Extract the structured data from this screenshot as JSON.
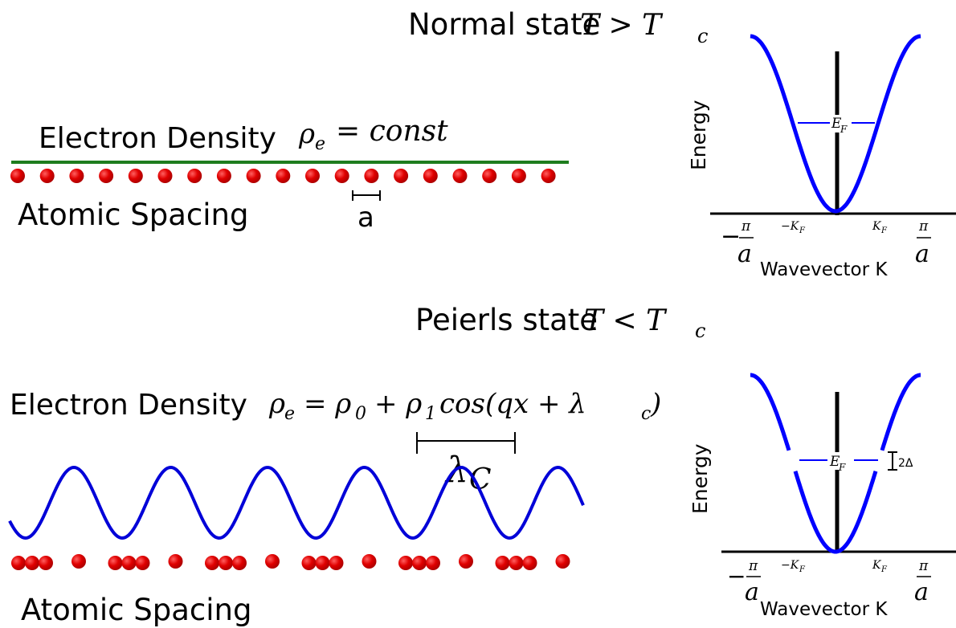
{
  "colors": {
    "electron_density_line": "#1e7d1e",
    "atom": "#e00000",
    "band": "#0000ff",
    "axis": "#000000"
  },
  "normal": {
    "state_label": "Normal state",
    "state_condition": "T > T",
    "state_sub": "c",
    "electron_density_label": "Electron Density",
    "electron_density_formula": "ρ",
    "formula_sub": "e",
    "formula_rhs": "= const",
    "atomic_spacing_label": "Atomic Spacing",
    "spacing_symbol": "a",
    "atoms_count": 19,
    "band": {
      "energy_label": "Energy",
      "fermi_label": "E",
      "fermi_sub": "F",
      "kf_neg": "−K",
      "kf_pos": "K",
      "kf_sub": "F",
      "pi_num": "π",
      "pi_den": "a",
      "minus": "−",
      "wavevector_label": "Wavevector K"
    }
  },
  "peierls": {
    "state_label": "Peierls state",
    "state_condition": "T < T",
    "state_sub": "c",
    "electron_density_label": "Electron Density",
    "formula_main": "ρ",
    "formula_sub_e": "e",
    "formula_eq": "= ρ",
    "formula_sub_0": "0",
    "formula_plus": "+ ρ",
    "formula_sub_1": "1",
    "formula_cos": "cos(qx + λ",
    "formula_sub_c": "c",
    "formula_close": ")",
    "lambda_label": "λ",
    "lambda_sub": "C",
    "atomic_spacing_label": "Atomic Spacing",
    "gap_label": "2Δ",
    "atom_groups": 6,
    "band": {
      "energy_label": "Energy",
      "fermi_label": "E",
      "fermi_sub": "F",
      "kf_neg": "−K",
      "kf_pos": "K",
      "kf_sub": "F",
      "pi_num": "π",
      "pi_den": "a",
      "minus": "−",
      "wavevector_label": "Wavevector K"
    }
  }
}
